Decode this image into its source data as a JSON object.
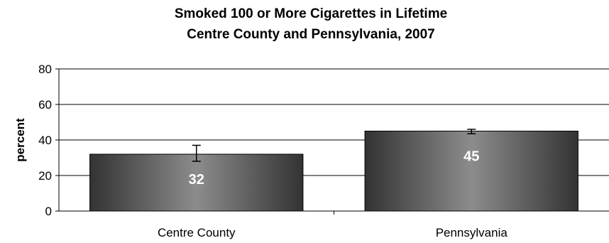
{
  "chart_data": {
    "type": "bar",
    "title": "Smoked 100 or More Cigarettes in Lifetime",
    "subtitle": "Centre County and Pennsylvania, 2007",
    "xlabel": "",
    "ylabel": "percent",
    "ylim": [
      0,
      80
    ],
    "yticks": [
      "0",
      "20",
      "40",
      "60",
      "80"
    ],
    "grid": true,
    "legend": "none",
    "categories": [
      "Centre County",
      "Pennsylvania"
    ],
    "values": [
      32,
      45
    ],
    "data_labels": [
      "32",
      "45"
    ],
    "error_bars": [
      {
        "low": 28,
        "high": 37
      },
      {
        "low": 43.5,
        "high": 46
      }
    ],
    "bar_gradient": [
      "#333333",
      "#8c8c8c",
      "#333333"
    ]
  }
}
